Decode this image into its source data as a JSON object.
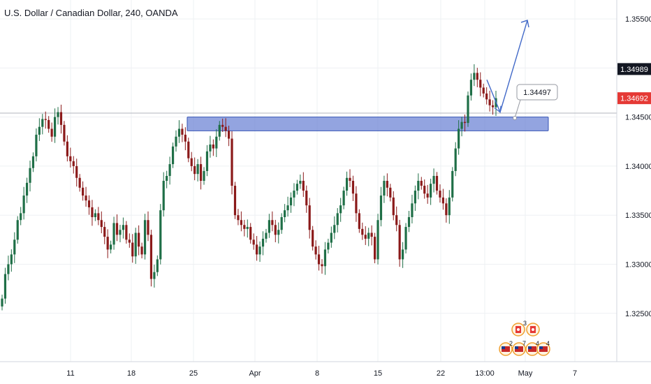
{
  "header": {
    "title": "U.S. Dollar / Canadian Dollar, 240, OANDA"
  },
  "colors": {
    "up": "#26a69a",
    "down": "#ef5350",
    "up_candle": "#1f6f47",
    "down_candle": "#8b1a1a",
    "zone_fill": "#6f86d6",
    "zone_stroke": "#3553b5",
    "projection": "#4169c8",
    "last_price_bg": "#e53935",
    "marker_price_bg": "#131722",
    "grid": "#eef0f3"
  },
  "chart_data": {
    "type": "candlestick",
    "y_axis": {
      "range": [
        1.3205,
        1.3565
      ],
      "ticks": [
        "1.35500",
        "1.35000",
        "1.34500",
        "1.34000",
        "1.33500",
        "1.33000",
        "1.32500"
      ],
      "tick_values": [
        1.355,
        1.35,
        1.345,
        1.34,
        1.335,
        1.33,
        1.325
      ]
    },
    "x_axis": {
      "ticks": [
        "11",
        "18",
        "25",
        "Apr",
        "8",
        "15",
        "22",
        "13:00",
        "May",
        "7"
      ]
    },
    "price_labels": {
      "marker": "1.34989",
      "marker_value": 1.34989,
      "last": "1.34692",
      "last_value": 1.34692
    },
    "horizontal_line": 1.3454,
    "support_zone": {
      "low": 1.3436,
      "high": 1.345
    },
    "callout_label": "1.34497",
    "callout_value": 1.34497,
    "projection_target": 1.355,
    "series_close": [
      1.3265,
      1.329,
      1.33,
      1.331,
      1.3325,
      1.3345,
      1.3352,
      1.337,
      1.3383,
      1.3398,
      1.341,
      1.3432,
      1.344,
      1.3448,
      1.3447,
      1.3438,
      1.343,
      1.345,
      1.3455,
      1.3442,
      1.3425,
      1.341,
      1.3405,
      1.34,
      1.3388,
      1.3378,
      1.337,
      1.3365,
      1.3358,
      1.3348,
      1.3352,
      1.3345,
      1.3338,
      1.3328,
      1.3315,
      1.332,
      1.3342,
      1.333,
      1.3335,
      1.334,
      1.3325,
      1.3322,
      1.3308,
      1.3332,
      1.3318,
      1.331,
      1.3345,
      1.333,
      1.3285,
      1.3292,
      1.3305,
      1.3355,
      1.3385,
      1.339,
      1.3402,
      1.342,
      1.343,
      1.3438,
      1.3432,
      1.3425,
      1.3408,
      1.34,
      1.3392,
      1.3402,
      1.3385,
      1.3395,
      1.3415,
      1.3422,
      1.3418,
      1.343,
      1.3442,
      1.344,
      1.3436,
      1.3428,
      1.338,
      1.335,
      1.3345,
      1.334,
      1.3336,
      1.3338,
      1.3325,
      1.332,
      1.331,
      1.3318,
      1.3326,
      1.3332,
      1.3345,
      1.334,
      1.333,
      1.3335,
      1.3348,
      1.3355,
      1.336,
      1.3368,
      1.3375,
      1.3382,
      1.3385,
      1.3375,
      1.336,
      1.3335,
      1.3318,
      1.331,
      1.33,
      1.3298,
      1.3315,
      1.3322,
      1.3332,
      1.334,
      1.3352,
      1.336,
      1.3375,
      1.3388,
      1.3385,
      1.3372,
      1.3352,
      1.3336,
      1.333,
      1.3326,
      1.3332,
      1.3328,
      1.3305,
      1.3345,
      1.337,
      1.3385,
      1.3378,
      1.3368,
      1.335,
      1.334,
      1.3305,
      1.3315,
      1.3338,
      1.3348,
      1.3362,
      1.3375,
      1.3385,
      1.338,
      1.3372,
      1.3368,
      1.3382,
      1.339,
      1.3375,
      1.3368,
      1.3362,
      1.335,
      1.3368,
      1.3395,
      1.3418,
      1.3438,
      1.3445,
      1.3444,
      1.3472,
      1.3488,
      1.3495,
      1.3488,
      1.348,
      1.3474,
      1.3468,
      1.3462,
      1.346,
      1.34692
    ]
  }
}
